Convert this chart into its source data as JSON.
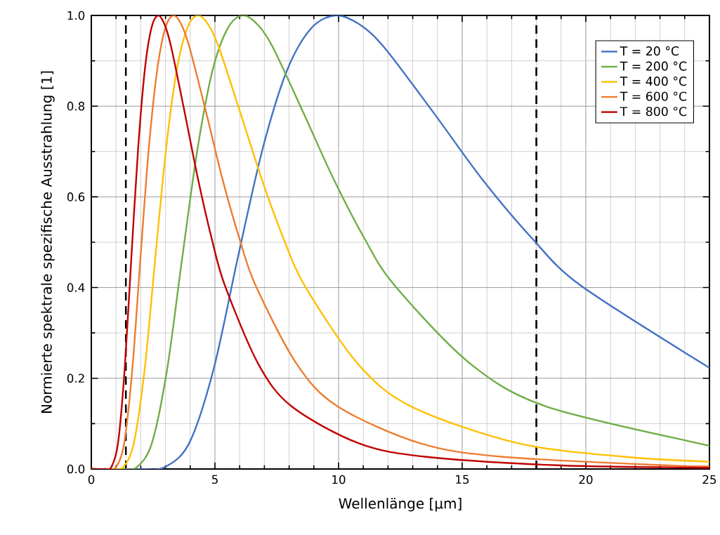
{
  "chart_data": {
    "type": "line",
    "xlabel": "Wellenlänge [µm]",
    "ylabel": "Normierte spektrale spezifische Ausstrahlung [1]",
    "xlim": [
      0,
      25
    ],
    "ylim": [
      0,
      1
    ],
    "xticks": [
      0,
      5,
      10,
      15,
      20,
      25
    ],
    "yticks": [
      {
        "value": 0,
        "label": "0.0"
      },
      0.2,
      0.4,
      0.6,
      0.8,
      {
        "value": 1,
        "label": "1.0"
      }
    ],
    "grid": true,
    "legend": "top right",
    "line_style": "solid",
    "marker": "none",
    "ref_lines": [
      {
        "axis": "x",
        "value": 1.4,
        "color": "#000000",
        "line_style": "dashed"
      },
      {
        "axis": "x",
        "value": 18,
        "color": "#000000",
        "line_style": "dashed"
      }
    ],
    "series": [
      {
        "name": "T = 20 °C",
        "color": "#4472c4",
        "x": [
          0,
          1.98,
          2.97,
          3.96,
          4.95,
          5.93,
          6.92,
          7.91,
          8.9,
          9.89,
          10.88,
          11.87,
          13.85,
          15.82,
          17.8,
          19.78,
          24.73,
          25
        ],
        "values": [
          0,
          0,
          0.004,
          0.057,
          0.221,
          0.467,
          0.704,
          0.878,
          0.972,
          1,
          0.979,
          0.928,
          0.785,
          0.638,
          0.51,
          0.405,
          0.232,
          0.226
        ]
      },
      {
        "name": "T = 200 °C",
        "color": "#70ad47",
        "x": [
          0,
          1.23,
          1.84,
          2.45,
          3.07,
          3.68,
          4.29,
          4.9,
          5.52,
          6.13,
          6.74,
          7.36,
          8.58,
          9.81,
          11.03,
          12.26,
          15.33,
          18.39,
          24.52,
          25
        ],
        "values": [
          0,
          0,
          0.004,
          0.057,
          0.221,
          0.467,
          0.704,
          0.878,
          0.972,
          1,
          0.979,
          0.928,
          0.785,
          0.638,
          0.51,
          0.405,
          0.232,
          0.138,
          0.057,
          0.053
        ]
      },
      {
        "name": "T = 400 °C",
        "color": "#ffc000",
        "x": [
          0,
          0.86,
          1.29,
          1.72,
          2.16,
          2.59,
          3.02,
          3.45,
          3.88,
          4.31,
          4.74,
          5.17,
          6.03,
          6.9,
          7.76,
          8.62,
          10.78,
          12.93,
          17.24,
          21.55,
          25
        ],
        "values": [
          0,
          0,
          0.004,
          0.057,
          0.221,
          0.467,
          0.704,
          0.878,
          0.972,
          1,
          0.979,
          0.928,
          0.785,
          0.638,
          0.51,
          0.405,
          0.232,
          0.138,
          0.057,
          0.027,
          0.016
        ]
      },
      {
        "name": "T = 600 °C",
        "color": "#ed7d31",
        "x": [
          0,
          0.66,
          1.0,
          1.33,
          1.66,
          1.99,
          2.32,
          2.66,
          2.99,
          3.32,
          3.65,
          3.98,
          4.65,
          5.31,
          5.98,
          6.64,
          8.3,
          9.96,
          13.28,
          16.6,
          23.24,
          25
        ],
        "values": [
          0,
          0,
          0.004,
          0.057,
          0.221,
          0.467,
          0.704,
          0.878,
          0.972,
          1,
          0.979,
          0.928,
          0.785,
          0.638,
          0.51,
          0.405,
          0.232,
          0.138,
          0.057,
          0.027,
          0.008,
          0.006
        ]
      },
      {
        "name": "T = 800 °C",
        "color": "#c00000",
        "x": [
          0,
          0.54,
          0.81,
          1.08,
          1.35,
          1.62,
          1.89,
          2.16,
          2.43,
          2.7,
          2.97,
          3.24,
          3.78,
          4.32,
          4.86,
          5.4,
          6.75,
          8.1,
          10.8,
          13.5,
          18.9,
          24.3,
          25
        ],
        "values": [
          0,
          0,
          0.004,
          0.057,
          0.221,
          0.467,
          0.704,
          0.878,
          0.972,
          1,
          0.979,
          0.928,
          0.785,
          0.638,
          0.51,
          0.405,
          0.232,
          0.138,
          0.057,
          0.027,
          0.008,
          0.003,
          0.003
        ]
      }
    ]
  }
}
